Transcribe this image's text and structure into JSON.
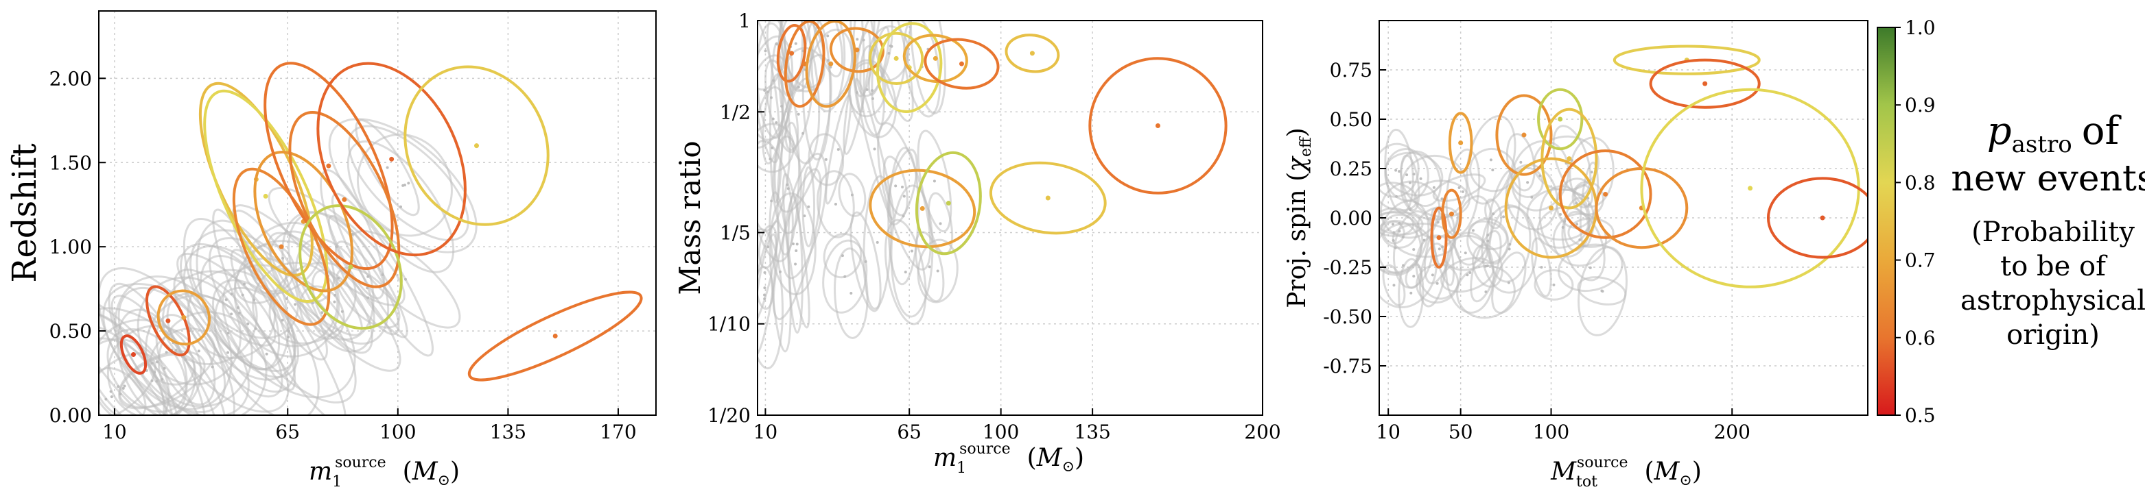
{
  "chart_data": [
    {
      "type": "scatter",
      "title": "",
      "xlabel": "m1source (M⊙)",
      "xlabel_parts": {
        "base": "m",
        "sub": "1",
        "sup": "source",
        "unit_open": "(",
        "unit_sym": "M",
        "unit_sub": "⊙",
        "unit_close": ")"
      },
      "ylabel": "Redshift",
      "xlim": [
        5,
        182
      ],
      "ylim": [
        0,
        2.4
      ],
      "xticks": [
        10,
        65,
        100,
        135,
        170
      ],
      "xtick_labels": [
        "10",
        "65",
        "100",
        "135",
        "170"
      ],
      "yticks": [
        0.0,
        0.5,
        1.0,
        1.5,
        2.0
      ],
      "ytick_labels": [
        "0.00",
        "0.50",
        "1.00",
        "1.50",
        "2.00"
      ],
      "grid": true,
      "new_events": [
        {
          "x": 16,
          "y": 0.36,
          "rx": 3,
          "ry": 0.12,
          "p": 0.55
        },
        {
          "x": 27,
          "y": 0.56,
          "rx": 5,
          "ry": 0.22,
          "p": 0.57
        },
        {
          "x": 32,
          "y": 0.58,
          "rx": 8,
          "ry": 0.16,
          "p": 0.68
        },
        {
          "x": 150,
          "y": 0.47,
          "rx": 30,
          "ry": 0.12,
          "p": 0.6
        },
        {
          "x": 55,
          "y": 1.4,
          "rx": 12,
          "ry": 0.62,
          "p": 0.74
        },
        {
          "x": 58,
          "y": 1.3,
          "rx": 13,
          "ry": 0.68,
          "p": 0.8
        },
        {
          "x": 63,
          "y": 1.0,
          "rx": 11,
          "ry": 0.5,
          "p": 0.63
        },
        {
          "x": 70,
          "y": 1.15,
          "rx": 13,
          "ry": 0.44,
          "p": 0.67
        },
        {
          "x": 78,
          "y": 1.48,
          "rx": 15,
          "ry": 0.66,
          "p": 0.6
        },
        {
          "x": 83,
          "y": 1.28,
          "rx": 13,
          "ry": 0.56,
          "p": 0.62
        },
        {
          "x": 85,
          "y": 0.88,
          "rx": 15,
          "ry": 0.38,
          "p": 0.85
        },
        {
          "x": 98,
          "y": 1.52,
          "rx": 21,
          "ry": 0.6,
          "p": 0.58
        },
        {
          "x": 125,
          "y": 1.6,
          "rx": 22,
          "ry": 0.48,
          "p": 0.77
        }
      ]
    },
    {
      "type": "scatter",
      "title": "",
      "xlabel": "m1source (M⊙)",
      "xlabel_parts": {
        "base": "m",
        "sub": "1",
        "sup": "source",
        "unit_open": "(",
        "unit_sym": "M",
        "unit_sub": "⊙",
        "unit_close": ")"
      },
      "ylabel": "Mass ratio",
      "yscale": "log",
      "xlim": [
        7,
        200
      ],
      "ylim": [
        0.05,
        1
      ],
      "xticks": [
        10,
        65,
        100,
        135,
        200
      ],
      "xtick_labels": [
        "10",
        "65",
        "100",
        "135",
        "200"
      ],
      "yticks": [
        0.05,
        0.1,
        0.2,
        0.5,
        1
      ],
      "ytick_labels": [
        "1/20",
        "1/10",
        "1/5",
        "1/2",
        "1"
      ],
      "grid": true,
      "new_events": [
        {
          "x": 20,
          "y": 0.78,
          "rx": 5,
          "ry": 0.15,
          "p": 0.6
        },
        {
          "x": 25,
          "y": 0.72,
          "rx": 7,
          "ry": 0.2,
          "p": 0.62
        },
        {
          "x": 35,
          "y": 0.72,
          "rx": 9,
          "ry": 0.2,
          "p": 0.67
        },
        {
          "x": 45,
          "y": 0.8,
          "rx": 10,
          "ry": 0.12,
          "p": 0.65
        },
        {
          "x": 60,
          "y": 0.75,
          "rx": 10,
          "ry": 0.13,
          "p": 0.78
        },
        {
          "x": 65,
          "y": 0.7,
          "rx": 12,
          "ry": 0.2,
          "p": 0.8
        },
        {
          "x": 75,
          "y": 0.75,
          "rx": 12,
          "ry": 0.12,
          "p": 0.7
        },
        {
          "x": 85,
          "y": 0.72,
          "rx": 14,
          "ry": 0.12,
          "p": 0.6
        },
        {
          "x": 112,
          "y": 0.78,
          "rx": 10,
          "ry": 0.1,
          "p": 0.75
        },
        {
          "x": 160,
          "y": 0.45,
          "rx": 26,
          "ry": 0.18,
          "p": 0.6
        },
        {
          "x": 118,
          "y": 0.26,
          "rx": 22,
          "ry": 0.06,
          "p": 0.76
        },
        {
          "x": 70,
          "y": 0.24,
          "rx": 20,
          "ry": 0.06,
          "p": 0.68
        },
        {
          "x": 80,
          "y": 0.25,
          "rx": 12,
          "ry": 0.08,
          "p": 0.85
        }
      ]
    },
    {
      "type": "scatter",
      "title": "",
      "xlabel": "Mtotsource (M⊙)",
      "xlabel_parts": {
        "base": "M",
        "sub": "tot",
        "sup": "source",
        "unit_open": "(",
        "unit_sym": "M",
        "unit_sub": "⊙",
        "unit_close": ")"
      },
      "ylabel": "Proj. spin (χeff)",
      "ylabel_parts": {
        "text": "Proj. spin (",
        "sym": "χ",
        "sub": "eff",
        "close": ")"
      },
      "xlim": [
        5,
        275
      ],
      "ylim": [
        -1,
        1
      ],
      "xticks": [
        10,
        50,
        100,
        200
      ],
      "xtick_labels": [
        "10",
        "50",
        "100",
        "200"
      ],
      "yticks": [
        -0.75,
        -0.5,
        -0.25,
        0.0,
        0.25,
        0.5,
        0.75
      ],
      "ytick_labels": [
        "-0.75",
        "-0.50",
        "-0.25",
        "0.00",
        "0.25",
        "0.50",
        "0.75"
      ],
      "grid": true,
      "new_events": [
        {
          "x": 38,
          "y": -0.1,
          "rx": 4,
          "ry": 0.15,
          "p": 0.6
        },
        {
          "x": 50,
          "y": 0.38,
          "rx": 6,
          "ry": 0.15,
          "p": 0.68
        },
        {
          "x": 45,
          "y": 0.02,
          "rx": 5,
          "ry": 0.12,
          "p": 0.63
        },
        {
          "x": 85,
          "y": 0.42,
          "rx": 15,
          "ry": 0.2,
          "p": 0.65
        },
        {
          "x": 105,
          "y": 0.5,
          "rx": 12,
          "ry": 0.15,
          "p": 0.85
        },
        {
          "x": 110,
          "y": 0.3,
          "rx": 15,
          "ry": 0.25,
          "p": 0.75
        },
        {
          "x": 100,
          "y": 0.05,
          "rx": 25,
          "ry": 0.25,
          "p": 0.72
        },
        {
          "x": 130,
          "y": 0.12,
          "rx": 25,
          "ry": 0.22,
          "p": 0.62
        },
        {
          "x": 150,
          "y": 0.05,
          "rx": 25,
          "ry": 0.2,
          "p": 0.65
        },
        {
          "x": 175,
          "y": 0.8,
          "rx": 40,
          "ry": 0.07,
          "p": 0.78
        },
        {
          "x": 185,
          "y": 0.68,
          "rx": 30,
          "ry": 0.12,
          "p": 0.58
        },
        {
          "x": 210,
          "y": 0.15,
          "rx": 60,
          "ry": 0.5,
          "p": 0.8
        },
        {
          "x": 250,
          "y": 0.0,
          "rx": 30,
          "ry": 0.2,
          "p": 0.57
        }
      ]
    }
  ],
  "colorbar": {
    "min": 0.5,
    "max": 1.0,
    "ticks": [
      0.5,
      0.6,
      0.7,
      0.8,
      0.9,
      1.0
    ],
    "tick_labels": [
      "0.5",
      "0.6",
      "0.7",
      "0.8",
      "0.9",
      "1.0"
    ],
    "stops": [
      {
        "v": 0.5,
        "color": "#d7191c"
      },
      {
        "v": 0.6,
        "color": "#e8752e"
      },
      {
        "v": 0.7,
        "color": "#eaa93a"
      },
      {
        "v": 0.8,
        "color": "#e3d653"
      },
      {
        "v": 0.9,
        "color": "#a2c54a"
      },
      {
        "v": 1.0,
        "color": "#3d7a2a"
      }
    ]
  },
  "caption": {
    "p_symbol": "p",
    "p_sub": "astro",
    "line1_rest": "of",
    "line2": "new events",
    "line3": "(Probability",
    "line4": "to be of",
    "line5": "astrophysical",
    "line6": "origin)"
  },
  "colors": {
    "background_events": "#bdbdbd",
    "grid": "#cccccc"
  }
}
